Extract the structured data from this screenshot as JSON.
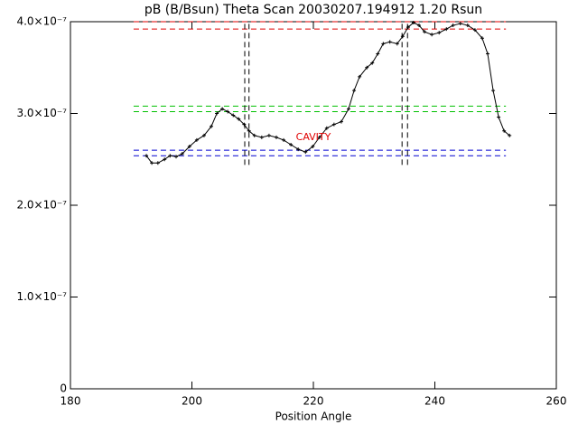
{
  "chart_data": {
    "type": "line",
    "title": "pB (B/Bsun) Theta Scan 20030207.194912 1.20 Rsun",
    "x_label": "Position Angle",
    "xlim": [
      180,
      260
    ],
    "xticks": [
      180,
      200,
      220,
      240,
      260
    ],
    "ylim": [
      0,
      4e-07
    ],
    "yticks": [
      0,
      {
        "value": 1e-07,
        "label": "1.0×10⁻⁷"
      },
      {
        "value": 2e-07,
        "label": "2.0×10⁻⁷"
      },
      {
        "value": 3e-07,
        "label": "3.0×10⁻⁷"
      },
      {
        "value": 4e-07,
        "label": "4.0×10⁻⁷"
      }
    ],
    "series": [
      {
        "color": "#000000",
        "x": [
          192.5,
          193.4,
          194.4,
          195.5,
          196.4,
          197.4,
          198.4,
          199.6,
          200.8,
          202.0,
          203.2,
          204.1,
          205.0,
          205.9,
          206.8,
          207.7,
          208.6,
          209.4,
          210.3,
          211.5,
          212.7,
          213.9,
          215.1,
          216.3,
          217.5,
          218.7,
          219.9,
          221.0,
          222.2,
          223.4,
          224.6,
          225.8,
          226.7,
          227.6,
          228.8,
          229.7,
          230.6,
          231.5,
          232.6,
          233.8,
          234.7,
          235.6,
          236.5,
          237.4,
          238.3,
          239.5,
          240.7,
          241.9,
          243.0,
          244.2,
          245.4,
          246.6,
          247.8,
          248.7,
          249.6,
          250.5,
          251.4,
          252.3
        ],
        "values": [
          2.54e-07,
          2.46e-07,
          2.46e-07,
          2.5e-07,
          2.54e-07,
          2.53e-07,
          2.56e-07,
          2.64e-07,
          2.71e-07,
          2.76e-07,
          2.86e-07,
          3e-07,
          3.05e-07,
          3.02e-07,
          2.98e-07,
          2.94e-07,
          2.88e-07,
          2.81e-07,
          2.76e-07,
          2.74e-07,
          2.76e-07,
          2.74e-07,
          2.71e-07,
          2.66e-07,
          2.61e-07,
          2.58e-07,
          2.64e-07,
          2.74e-07,
          2.84e-07,
          2.88e-07,
          2.91e-07,
          3.05e-07,
          3.25e-07,
          3.4e-07,
          3.5e-07,
          3.55e-07,
          3.65e-07,
          3.76e-07,
          3.78e-07,
          3.76e-07,
          3.84e-07,
          3.94e-07,
          3.99e-07,
          3.96e-07,
          3.89e-07,
          3.86e-07,
          3.88e-07,
          3.92e-07,
          3.96e-07,
          3.98e-07,
          3.96e-07,
          3.91e-07,
          3.82e-07,
          3.65e-07,
          3.25e-07,
          2.96e-07,
          2.81e-07,
          2.76e-07
        ]
      }
    ],
    "reference_lines": [
      {
        "color": "#e00000",
        "y": 4e-07,
        "x_range": [
          190.4,
          251.7
        ]
      },
      {
        "color": "#e00000",
        "y": 3.92e-07,
        "x_range": [
          190.4,
          251.7
        ]
      },
      {
        "color": "#00c000",
        "y": 3.08e-07,
        "x_range": [
          190.4,
          251.7
        ]
      },
      {
        "color": "#00c000",
        "y": 3.02e-07,
        "x_range": [
          190.4,
          251.7
        ]
      },
      {
        "color": "#0000d0",
        "y": 2.6e-07,
        "x_range": [
          190.4,
          251.7
        ]
      },
      {
        "color": "#0000d0",
        "y": 2.54e-07,
        "x_range": [
          190.4,
          251.7
        ]
      }
    ],
    "vertical_lines": [
      {
        "color": "#000000",
        "x": 208.7,
        "y_range": [
          2.44e-07,
          4e-07
        ]
      },
      {
        "color": "#000000",
        "x": 209.4,
        "y_range": [
          2.44e-07,
          4e-07
        ]
      },
      {
        "color": "#000000",
        "x": 234.6,
        "y_range": [
          2.44e-07,
          4e-07
        ]
      },
      {
        "color": "#000000",
        "x": 235.5,
        "y_range": [
          2.44e-07,
          4e-07
        ]
      }
    ],
    "annotation": {
      "text": "CAVITY",
      "color": "#e00000"
    }
  }
}
